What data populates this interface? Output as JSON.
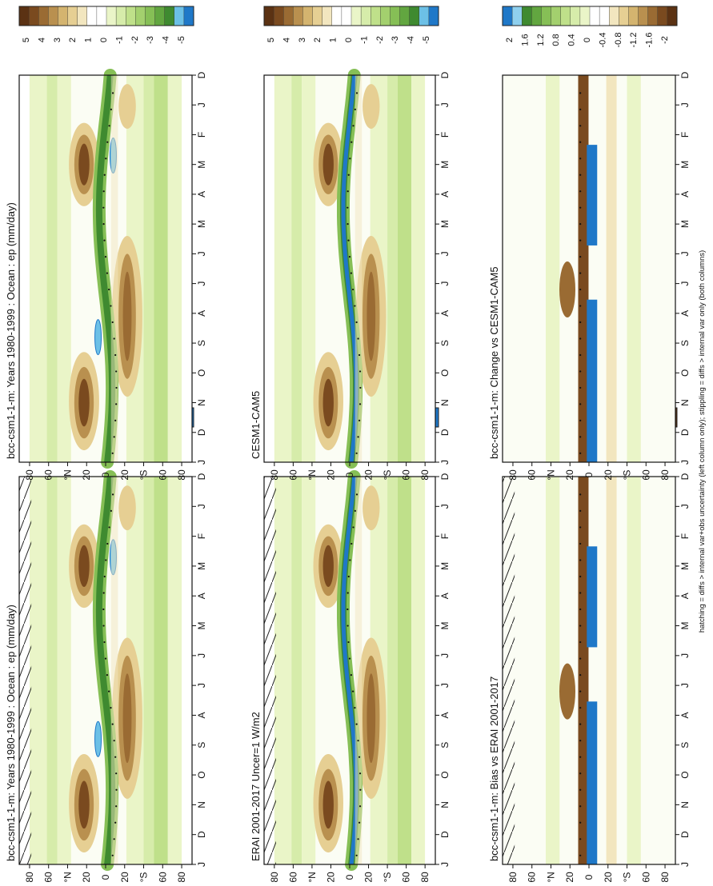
{
  "footer_note": "hatching = diffs > internal var+obs uncertainty (left column only); stippling = diffs > internal var only (both columns)",
  "chart_data": [
    {
      "type": "heatmap",
      "title": "bcc-csm1-1-m: Years 1980-1999 : Ocean : ep (mm/day)",
      "months": [
        "D",
        "J",
        "F",
        "M",
        "A",
        "M",
        "J",
        "J",
        "A",
        "S",
        "O",
        "N",
        "D",
        "J"
      ],
      "lat_ticks": [
        "80",
        "60",
        "°N",
        "20",
        "0",
        "20",
        "°S",
        "60",
        "80"
      ],
      "colorbar_ticks": [
        "5",
        "4",
        "3",
        "2",
        "1",
        "0",
        "-1",
        "-2",
        "-3",
        "-4",
        "-5"
      ],
      "kind": "field",
      "hatch": true,
      "colors": {
        "brown": "#6b3a14",
        "tan": "#e4c07a",
        "green": "#4f9a3a",
        "blue": "#2e7ec8"
      }
    },
    {
      "type": "heatmap",
      "title": "bcc-csm1-1-m: Years 1980-1999 : Ocean : ep (mm/day)",
      "months": [
        "D",
        "J",
        "F",
        "M",
        "A",
        "M",
        "J",
        "J",
        "A",
        "S",
        "O",
        "N",
        "D",
        "J"
      ],
      "lat_ticks": [
        "80",
        "60",
        "°N",
        "20",
        "0",
        "20",
        "°S",
        "60",
        "80"
      ],
      "colorbar_ticks": [
        "5",
        "4",
        "3",
        "2",
        "1",
        "0",
        "-1",
        "-2",
        "-3",
        "-4",
        "-5"
      ],
      "kind": "field",
      "hatch": false
    },
    {
      "type": "heatmap",
      "title": "ERAI 2001-2017 Uncer=1 W/m2",
      "months": [
        "D",
        "J",
        "F",
        "M",
        "A",
        "M",
        "J",
        "J",
        "A",
        "S",
        "O",
        "N",
        "D",
        "J"
      ],
      "lat_ticks": [
        "80",
        "60",
        "°N",
        "20",
        "0",
        "20",
        "°S",
        "60",
        "80"
      ],
      "colorbar_ticks": [
        "5",
        "4",
        "3",
        "2",
        "1",
        "0",
        "-1",
        "-2",
        "-3",
        "-4",
        "-5"
      ],
      "kind": "field",
      "hatch": true
    },
    {
      "type": "heatmap",
      "title": "CESM1-CAM5",
      "months": [
        "D",
        "J",
        "F",
        "M",
        "A",
        "M",
        "J",
        "J",
        "A",
        "S",
        "O",
        "N",
        "D",
        "J"
      ],
      "lat_ticks": [
        "80",
        "60",
        "°N",
        "20",
        "0",
        "20",
        "°S",
        "60",
        "80"
      ],
      "colorbar_ticks": [
        "5",
        "4",
        "3",
        "2",
        "1",
        "0",
        "-1",
        "-2",
        "-3",
        "-4",
        "-5"
      ],
      "kind": "field",
      "hatch": false
    },
    {
      "type": "heatmap",
      "title": "bcc-csm1-1-m: Bias vs ERAI 2001-2017",
      "months": [
        "D",
        "J",
        "F",
        "M",
        "A",
        "M",
        "J",
        "J",
        "A",
        "S",
        "O",
        "N",
        "D",
        "J"
      ],
      "lat_ticks": [
        "80",
        "60",
        "°N",
        "20",
        "0",
        "20",
        "°S",
        "60",
        "80"
      ],
      "colorbar_ticks": [
        "2",
        "1.6",
        "1.2",
        "0.8",
        "0.4",
        "0",
        "-0.4",
        "-0.8",
        "-1.2",
        "-1.6",
        "-2"
      ],
      "kind": "diff",
      "hatch": true
    },
    {
      "type": "heatmap",
      "title": "bcc-csm1-1-m: Change vs CESM1-CAM5",
      "months": [
        "D",
        "J",
        "F",
        "M",
        "A",
        "M",
        "J",
        "J",
        "A",
        "S",
        "O",
        "N",
        "D",
        "J"
      ],
      "lat_ticks": [
        "80",
        "60",
        "°N",
        "20",
        "0",
        "20",
        "°S",
        "60",
        "80"
      ],
      "colorbar_ticks": [
        "2",
        "1.6",
        "1.2",
        "0.8",
        "0.4",
        "0",
        "-0.4",
        "-0.8",
        "-1.2",
        "-1.6",
        "-2"
      ],
      "kind": "diff",
      "hatch": false
    }
  ]
}
